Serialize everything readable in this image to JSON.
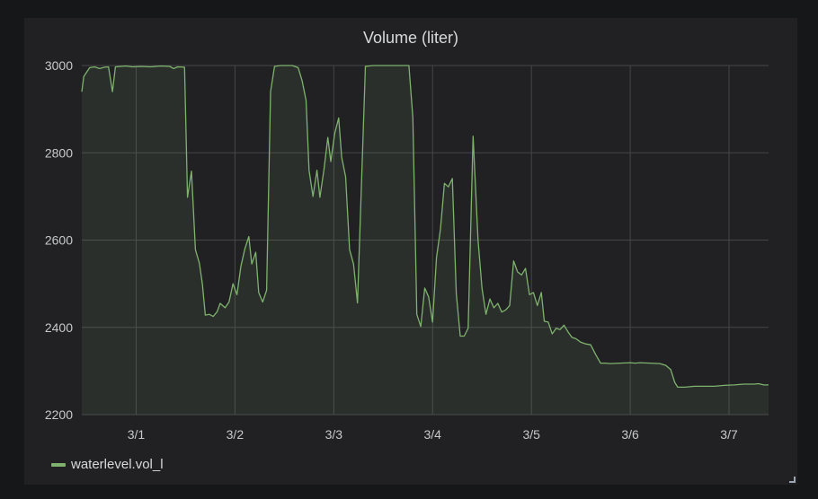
{
  "panel": {
    "title": "Volume (liter)"
  },
  "colors": {
    "series": "#7eb26d",
    "fill": "rgba(126,178,109,0.10)",
    "grid": "#464649",
    "axis_text": "#c8c9ca",
    "background": "#212124"
  },
  "chart_data": {
    "type": "area",
    "title": "Volume (liter)",
    "xlabel": "",
    "ylabel": "",
    "xlim": [
      0.45,
      7.4
    ],
    "ylim": [
      2200,
      3000
    ],
    "y_ticks": [
      2200,
      2400,
      2600,
      2800,
      3000
    ],
    "x_ticks": [
      {
        "value": 1,
        "label": "3/1"
      },
      {
        "value": 2,
        "label": "3/2"
      },
      {
        "value": 3,
        "label": "3/3"
      },
      {
        "value": 4,
        "label": "3/4"
      },
      {
        "value": 5,
        "label": "3/5"
      },
      {
        "value": 6,
        "label": "3/6"
      },
      {
        "value": 7,
        "label": "3/7"
      }
    ],
    "grid": true,
    "legend_position": "bottom-left",
    "series": [
      {
        "name": "waterlevel.vol_l",
        "points": [
          [
            0.45,
            2940
          ],
          [
            0.47,
            2975
          ],
          [
            0.5,
            2985
          ],
          [
            0.53,
            2995
          ],
          [
            0.58,
            2997
          ],
          [
            0.63,
            2993
          ],
          [
            0.68,
            2996
          ],
          [
            0.72,
            2997
          ],
          [
            0.76,
            2940
          ],
          [
            0.79,
            2997
          ],
          [
            0.84,
            2998
          ],
          [
            0.9,
            2999
          ],
          [
            0.96,
            2997
          ],
          [
            1.05,
            2998
          ],
          [
            1.15,
            2997
          ],
          [
            1.25,
            2999
          ],
          [
            1.34,
            2998
          ],
          [
            1.38,
            2993
          ],
          [
            1.42,
            2997
          ],
          [
            1.49,
            2996
          ],
          [
            1.52,
            2698
          ],
          [
            1.56,
            2758
          ],
          [
            1.6,
            2578
          ],
          [
            1.64,
            2547
          ],
          [
            1.67,
            2500
          ],
          [
            1.7,
            2428
          ],
          [
            1.74,
            2430
          ],
          [
            1.78,
            2425
          ],
          [
            1.82,
            2436
          ],
          [
            1.85,
            2455
          ],
          [
            1.9,
            2445
          ],
          [
            1.94,
            2458
          ],
          [
            1.98,
            2500
          ],
          [
            2.02,
            2475
          ],
          [
            2.06,
            2540
          ],
          [
            2.1,
            2580
          ],
          [
            2.14,
            2608
          ],
          [
            2.17,
            2545
          ],
          [
            2.21,
            2572
          ],
          [
            2.24,
            2480
          ],
          [
            2.28,
            2458
          ],
          [
            2.32,
            2485
          ],
          [
            2.36,
            2940
          ],
          [
            2.4,
            2998
          ],
          [
            2.46,
            3000
          ],
          [
            2.52,
            3000
          ],
          [
            2.58,
            3000
          ],
          [
            2.64,
            2995
          ],
          [
            2.68,
            2965
          ],
          [
            2.72,
            2920
          ],
          [
            2.75,
            2760
          ],
          [
            2.79,
            2700
          ],
          [
            2.83,
            2760
          ],
          [
            2.86,
            2698
          ],
          [
            2.9,
            2760
          ],
          [
            2.94,
            2835
          ],
          [
            2.97,
            2780
          ],
          [
            3.01,
            2845
          ],
          [
            3.05,
            2880
          ],
          [
            3.08,
            2790
          ],
          [
            3.12,
            2745
          ],
          [
            3.16,
            2578
          ],
          [
            3.2,
            2545
          ],
          [
            3.24,
            2456
          ],
          [
            3.32,
            2998
          ],
          [
            3.4,
            3000
          ],
          [
            3.5,
            3000
          ],
          [
            3.6,
            3000
          ],
          [
            3.7,
            3000
          ],
          [
            3.76,
            3000
          ],
          [
            3.8,
            2880
          ],
          [
            3.84,
            2430
          ],
          [
            3.88,
            2402
          ],
          [
            3.92,
            2490
          ],
          [
            3.96,
            2470
          ],
          [
            4.0,
            2412
          ],
          [
            4.04,
            2560
          ],
          [
            4.08,
            2625
          ],
          [
            4.12,
            2730
          ],
          [
            4.16,
            2722
          ],
          [
            4.2,
            2741
          ],
          [
            4.24,
            2478
          ],
          [
            4.28,
            2380
          ],
          [
            4.32,
            2380
          ],
          [
            4.36,
            2398
          ],
          [
            4.41,
            2838
          ],
          [
            4.46,
            2600
          ],
          [
            4.5,
            2490
          ],
          [
            4.54,
            2430
          ],
          [
            4.58,
            2465
          ],
          [
            4.62,
            2445
          ],
          [
            4.66,
            2455
          ],
          [
            4.7,
            2435
          ],
          [
            4.74,
            2440
          ],
          [
            4.78,
            2450
          ],
          [
            4.82,
            2552
          ],
          [
            4.86,
            2527
          ],
          [
            4.9,
            2520
          ],
          [
            4.94,
            2535
          ],
          [
            4.98,
            2475
          ],
          [
            5.02,
            2480
          ],
          [
            5.06,
            2450
          ],
          [
            5.1,
            2480
          ],
          [
            5.13,
            2414
          ],
          [
            5.17,
            2412
          ],
          [
            5.21,
            2385
          ],
          [
            5.25,
            2398
          ],
          [
            5.29,
            2395
          ],
          [
            5.33,
            2405
          ],
          [
            5.37,
            2390
          ],
          [
            5.41,
            2377
          ],
          [
            5.45,
            2374
          ],
          [
            5.5,
            2366
          ],
          [
            5.55,
            2362
          ],
          [
            5.6,
            2360
          ],
          [
            5.65,
            2338
          ],
          [
            5.7,
            2318
          ],
          [
            5.75,
            2318
          ],
          [
            5.8,
            2317
          ],
          [
            5.9,
            2318
          ],
          [
            6.0,
            2319
          ],
          [
            6.05,
            2318
          ],
          [
            6.1,
            2319
          ],
          [
            6.2,
            2318
          ],
          [
            6.3,
            2317
          ],
          [
            6.36,
            2313
          ],
          [
            6.41,
            2303
          ],
          [
            6.45,
            2274
          ],
          [
            6.48,
            2263
          ],
          [
            6.55,
            2263
          ],
          [
            6.65,
            2265
          ],
          [
            6.75,
            2265
          ],
          [
            6.85,
            2265
          ],
          [
            6.95,
            2267
          ],
          [
            7.05,
            2268
          ],
          [
            7.15,
            2270
          ],
          [
            7.25,
            2270
          ],
          [
            7.3,
            2271
          ],
          [
            7.35,
            2268
          ],
          [
            7.4,
            2268
          ]
        ]
      }
    ]
  }
}
